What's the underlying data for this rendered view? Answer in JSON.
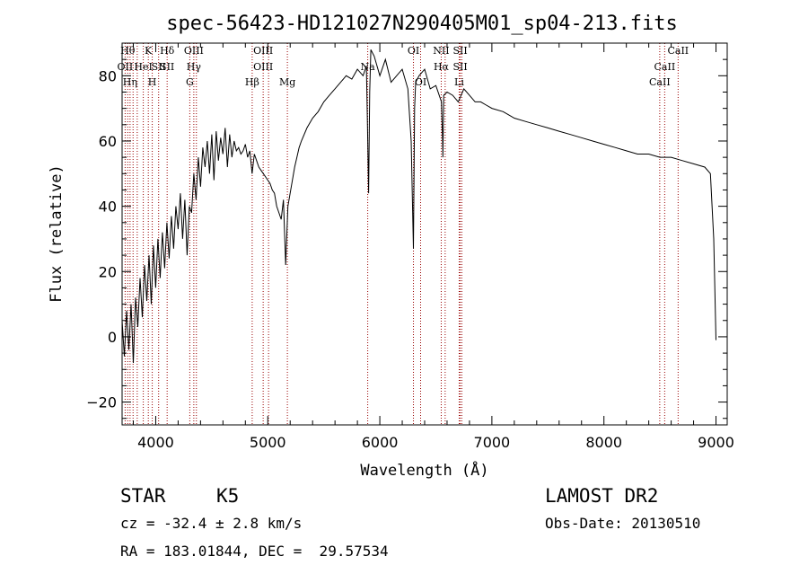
{
  "chart_data": {
    "type": "line",
    "title": "spec-56423-HD121027N290405M01_sp04-213.fits",
    "xlabel": "Wavelength (Å)",
    "ylabel": "Flux (relative)",
    "xlim": [
      3700,
      9100
    ],
    "ylim": [
      -27,
      90
    ],
    "x_ticks": [
      4000,
      5000,
      6000,
      7000,
      8000,
      9000
    ],
    "y_ticks": [
      -20,
      0,
      20,
      40,
      60,
      80
    ],
    "grid": false,
    "line_color": "#000000",
    "marker_color": "#990000",
    "series": [
      {
        "x": [
          3700,
          3720,
          3740,
          3760,
          3780,
          3800,
          3820,
          3840,
          3860,
          3880,
          3900,
          3920,
          3940,
          3960,
          3980,
          4000,
          4020,
          4040,
          4060,
          4080,
          4100,
          4120,
          4140,
          4160,
          4180,
          4200,
          4220,
          4240,
          4260,
          4280,
          4300,
          4320,
          4340,
          4360,
          4380,
          4400,
          4420,
          4440,
          4460,
          4480,
          4500,
          4520,
          4540,
          4560,
          4580,
          4600,
          4620,
          4640,
          4660,
          4680,
          4700,
          4720,
          4740,
          4760,
          4780,
          4800,
          4820,
          4840,
          4860,
          4880,
          4900,
          4920,
          4940,
          4960,
          4980,
          5000,
          5020,
          5040,
          5060,
          5080,
          5100,
          5120,
          5140,
          5160,
          5180,
          5200,
          5220,
          5240,
          5260,
          5280,
          5300,
          5350,
          5400,
          5450,
          5500,
          5550,
          5600,
          5650,
          5700,
          5750,
          5800,
          5850,
          5880,
          5890,
          5900,
          5910,
          5920,
          5950,
          6000,
          6050,
          6100,
          6150,
          6200,
          6250,
          6280,
          6300,
          6310,
          6320,
          6350,
          6400,
          6450,
          6500,
          6550,
          6560,
          6563,
          6570,
          6600,
          6650,
          6700,
          6750,
          6800,
          6850,
          6900,
          6950,
          7000,
          7100,
          7200,
          7300,
          7400,
          7500,
          7600,
          7700,
          7800,
          7900,
          8000,
          8100,
          8200,
          8300,
          8400,
          8500,
          8600,
          8700,
          8800,
          8900,
          8950,
          8980,
          9000
        ],
        "y": [
          5,
          -6,
          8,
          -4,
          10,
          -8,
          12,
          3,
          18,
          6,
          22,
          11,
          25,
          10,
          28,
          15,
          30,
          18,
          32,
          21,
          35,
          24,
          37,
          27,
          40,
          33,
          44,
          30,
          42,
          25,
          40,
          38,
          50,
          42,
          55,
          46,
          58,
          52,
          60,
          50,
          62,
          48,
          63,
          54,
          61,
          56,
          64,
          52,
          62,
          55,
          60,
          57,
          58,
          56,
          57,
          59,
          55,
          57,
          50,
          56,
          54,
          52,
          51,
          50,
          49,
          48,
          47,
          45,
          44,
          40,
          38,
          36,
          42,
          22,
          40,
          44,
          48,
          52,
          55,
          58,
          60,
          64,
          67,
          69,
          72,
          74,
          76,
          78,
          80,
          79,
          82,
          80,
          83,
          65,
          44,
          75,
          88,
          86,
          80,
          85,
          78,
          80,
          82,
          76,
          60,
          27,
          70,
          78,
          80,
          82,
          76,
          77,
          72,
          60,
          55,
          74,
          75,
          74,
          72,
          76,
          74,
          72,
          72,
          71,
          70,
          69,
          67,
          66,
          65,
          64,
          63,
          62,
          61,
          60,
          59,
          58,
          57,
          56,
          56,
          55,
          55,
          54,
          53,
          52,
          50,
          30,
          -1
        ]
      }
    ],
    "lines": [
      {
        "x": 3727,
        "labels": [
          "OII"
        ],
        "row": 2
      },
      {
        "x": 3750,
        "labels": [
          "Hθ"
        ],
        "row": 1
      },
      {
        "x": 3771,
        "labels": [
          "Hη"
        ],
        "row": 3
      },
      {
        "x": 3798,
        "labels": [],
        "row": 1
      },
      {
        "x": 3835,
        "labels": [],
        "row": 1
      },
      {
        "x": 3889,
        "labels": [
          "HeI"
        ],
        "row": 2
      },
      {
        "x": 3934,
        "labels": [
          "K"
        ],
        "row": 1
      },
      {
        "x": 3969,
        "labels": [
          "H"
        ],
        "row": 3
      },
      {
        "x": 4026,
        "labels": [
          "SII"
        ],
        "row": 2
      },
      {
        "x": 4102,
        "labels": [
          "Hδ",
          "SII"
        ],
        "row": 1
      },
      {
        "x": 4304,
        "labels": [
          "G"
        ],
        "row": 3
      },
      {
        "x": 4340,
        "labels": [
          "OIII",
          "Hγ"
        ],
        "row": 1
      },
      {
        "x": 4363,
        "labels": [],
        "row": 1
      },
      {
        "x": 4861,
        "labels": [
          "Hβ"
        ],
        "row": 3
      },
      {
        "x": 4959,
        "labels": [
          "OIII",
          "OIII"
        ],
        "row": 1
      },
      {
        "x": 5007,
        "labels": [],
        "row": 1
      },
      {
        "x": 5175,
        "labels": [
          "Mg"
        ],
        "row": 3
      },
      {
        "x": 5892,
        "labels": [
          "Na"
        ],
        "row": 2
      },
      {
        "x": 6300,
        "labels": [
          "OI"
        ],
        "row": 1
      },
      {
        "x": 6364,
        "labels": [
          "OI"
        ],
        "row": 3
      },
      {
        "x": 6548,
        "labels": [
          "NII",
          "Hα"
        ],
        "row": 1
      },
      {
        "x": 6583,
        "labels": [],
        "row": 1
      },
      {
        "x": 6708,
        "labels": [
          "Li"
        ],
        "row": 3
      },
      {
        "x": 6717,
        "labels": [
          "SII",
          "SII"
        ],
        "row": 1
      },
      {
        "x": 6731,
        "labels": [],
        "row": 1
      },
      {
        "x": 8498,
        "labels": [
          "CaII"
        ],
        "row": 3
      },
      {
        "x": 8542,
        "labels": [
          "CaII"
        ],
        "row": 2
      },
      {
        "x": 8662,
        "labels": [
          "CaII"
        ],
        "row": 1
      }
    ]
  },
  "info": {
    "object_class": "STAR",
    "subclass": "K5",
    "survey": "LAMOST DR2",
    "cz": "cz = -32.4 ± 2.8 km/s",
    "obs_date": "Obs-Date: 20130510",
    "coords": "RA = 183.01844, DEC =  29.57534"
  }
}
